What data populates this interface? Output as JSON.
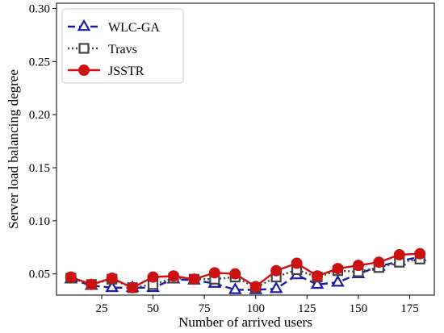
{
  "chart_data": {
    "type": "line",
    "xlabel": "Number of arrived users",
    "ylabel": "Server load balancing degree",
    "xlim": [
      3,
      187
    ],
    "ylim": [
      0.03,
      0.305
    ],
    "xticks": [
      25,
      50,
      75,
      100,
      125,
      150,
      175
    ],
    "yticks": [
      0.05,
      0.1,
      0.15,
      0.2,
      0.25,
      0.3
    ],
    "ytick_labels": [
      "0.05",
      "0.10",
      "0.15",
      "0.20",
      "0.25",
      "0.30"
    ],
    "grid": false,
    "legend_position": "top-left",
    "x": [
      10,
      20,
      30,
      40,
      50,
      60,
      70,
      80,
      90,
      100,
      110,
      120,
      130,
      140,
      150,
      160,
      170,
      180
    ],
    "series": [
      {
        "name": "WLC-GA",
        "color": "#1a1aa6",
        "linestyle": "dashed",
        "marker": "triangle-open",
        "values": [
          0.045,
          0.039,
          0.037,
          0.037,
          0.037,
          0.045,
          0.044,
          0.041,
          0.035,
          0.035,
          0.036,
          0.049,
          0.04,
          0.042,
          0.05,
          0.057,
          0.062,
          0.066
        ]
      },
      {
        "name": "Travs",
        "color": "#444444",
        "linestyle": "dotted",
        "marker": "square-open",
        "values": [
          0.046,
          0.04,
          0.045,
          0.037,
          0.04,
          0.046,
          0.045,
          0.045,
          0.047,
          0.037,
          0.047,
          0.054,
          0.047,
          0.053,
          0.052,
          0.056,
          0.061,
          0.064
        ]
      },
      {
        "name": "JSSTR",
        "color": "#cc1111",
        "linestyle": "solid",
        "marker": "circle-filled",
        "values": [
          0.047,
          0.04,
          0.046,
          0.037,
          0.047,
          0.048,
          0.045,
          0.051,
          0.05,
          0.038,
          0.053,
          0.06,
          0.048,
          0.055,
          0.058,
          0.061,
          0.068,
          0.069
        ]
      }
    ]
  }
}
